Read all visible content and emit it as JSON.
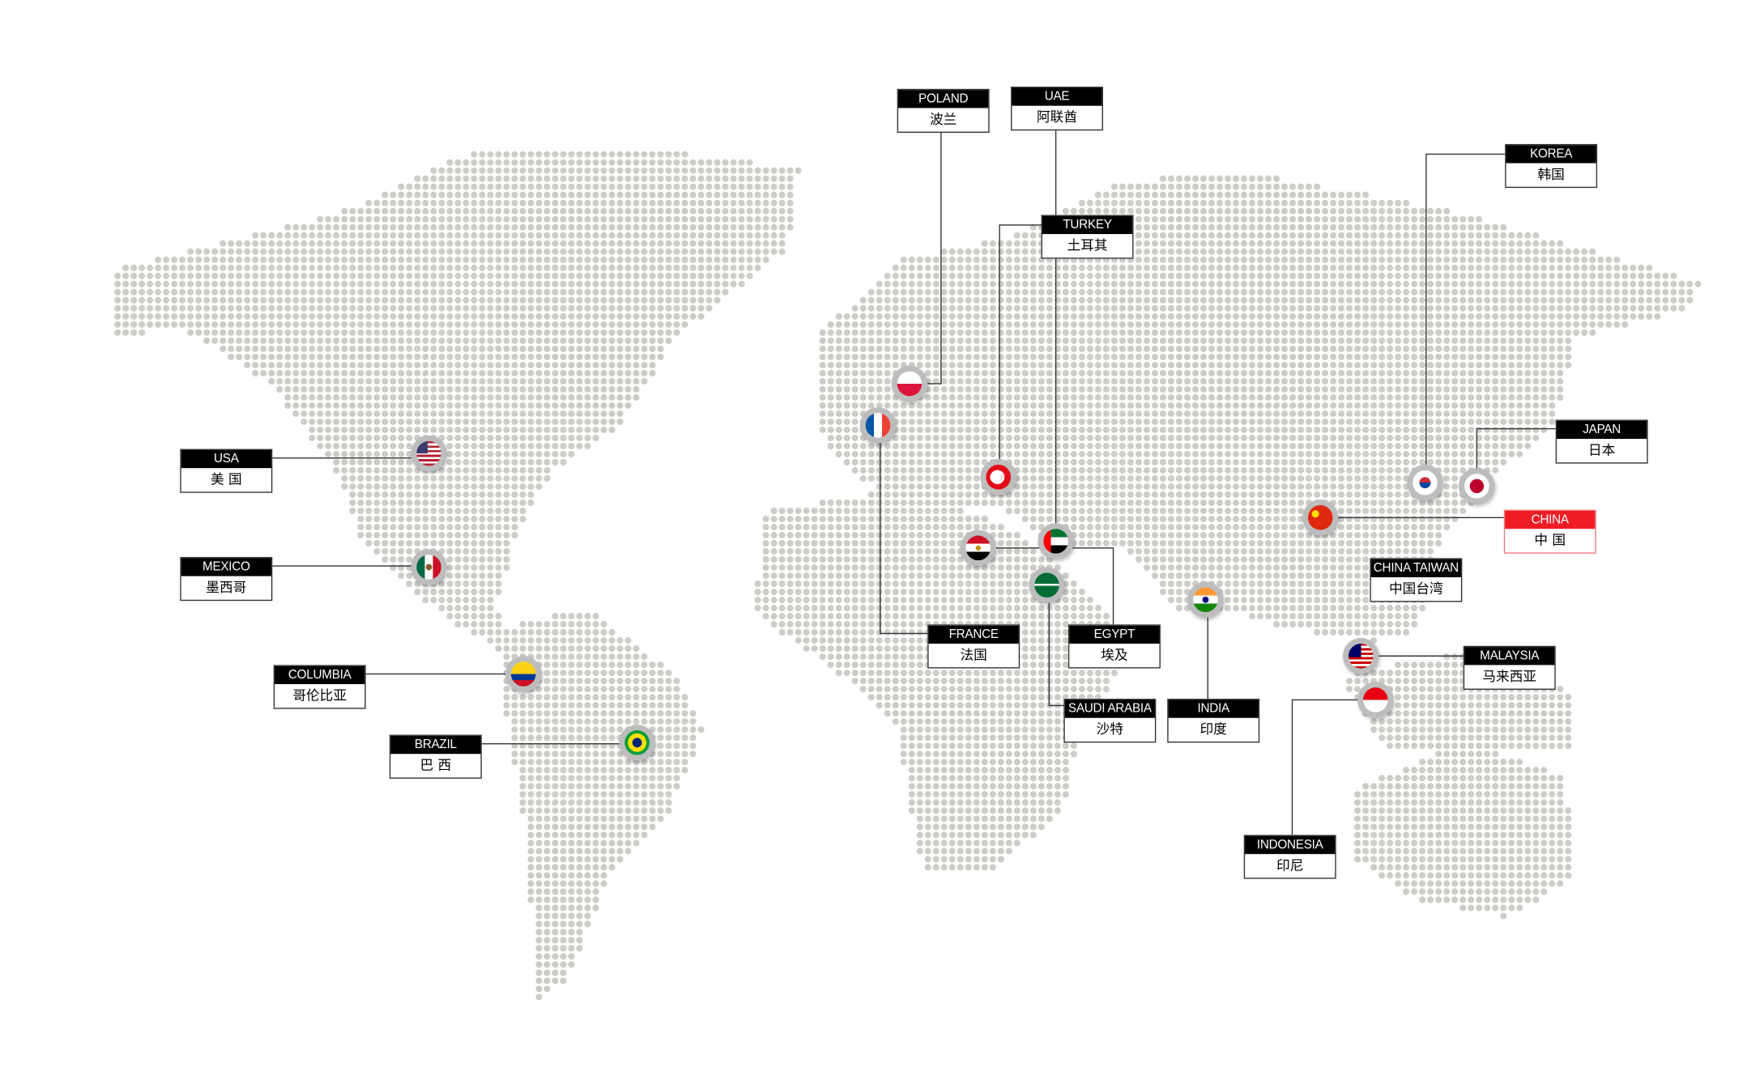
{
  "colors": {
    "dot": "#cfccc8",
    "label_bg": "#000000",
    "highlight": "#ee1c25",
    "line": "#333333"
  },
  "labels": [
    {
      "id": "poland",
      "en": "POLAND",
      "zh": "波兰"
    },
    {
      "id": "uae",
      "en": "UAE",
      "zh": "阿联酋"
    },
    {
      "id": "turkey",
      "en": "TURKEY",
      "zh": "土耳其"
    },
    {
      "id": "korea",
      "en": "KOREA",
      "zh": "韩国"
    },
    {
      "id": "japan",
      "en": "JAPAN",
      "zh": "日本"
    },
    {
      "id": "china",
      "en": "CHINA",
      "zh": "中 国",
      "highlight": true
    },
    {
      "id": "china-taiwan",
      "en": "CHINA TAIWAN",
      "zh": "中国台湾"
    },
    {
      "id": "malaysia",
      "en": "MALAYSIA",
      "zh": "马来西亚"
    },
    {
      "id": "indonesia",
      "en": "INDONESIA",
      "zh": "印尼"
    },
    {
      "id": "india",
      "en": "INDIA",
      "zh": "印度"
    },
    {
      "id": "saudi-arabia",
      "en": "SAUDI ARABIA",
      "zh": "沙特"
    },
    {
      "id": "egypt",
      "en": "EGYPT",
      "zh": "埃及"
    },
    {
      "id": "france",
      "en": "FRANCE",
      "zh": "法国"
    },
    {
      "id": "usa",
      "en": "USA",
      "zh": "美 国"
    },
    {
      "id": "mexico",
      "en": "MEXICO",
      "zh": "墨西哥"
    },
    {
      "id": "columbia",
      "en": "COLUMBIA",
      "zh": "哥伦比亚"
    },
    {
      "id": "brazil",
      "en": "BRAZIL",
      "zh": "巴 西"
    }
  ],
  "flags": [
    "poland",
    "france",
    "turkey",
    "egypt",
    "uae",
    "saudi-arabia",
    "india",
    "china",
    "korea",
    "japan",
    "malaysia",
    "indonesia",
    "usa",
    "mexico",
    "columbia",
    "brazil"
  ]
}
